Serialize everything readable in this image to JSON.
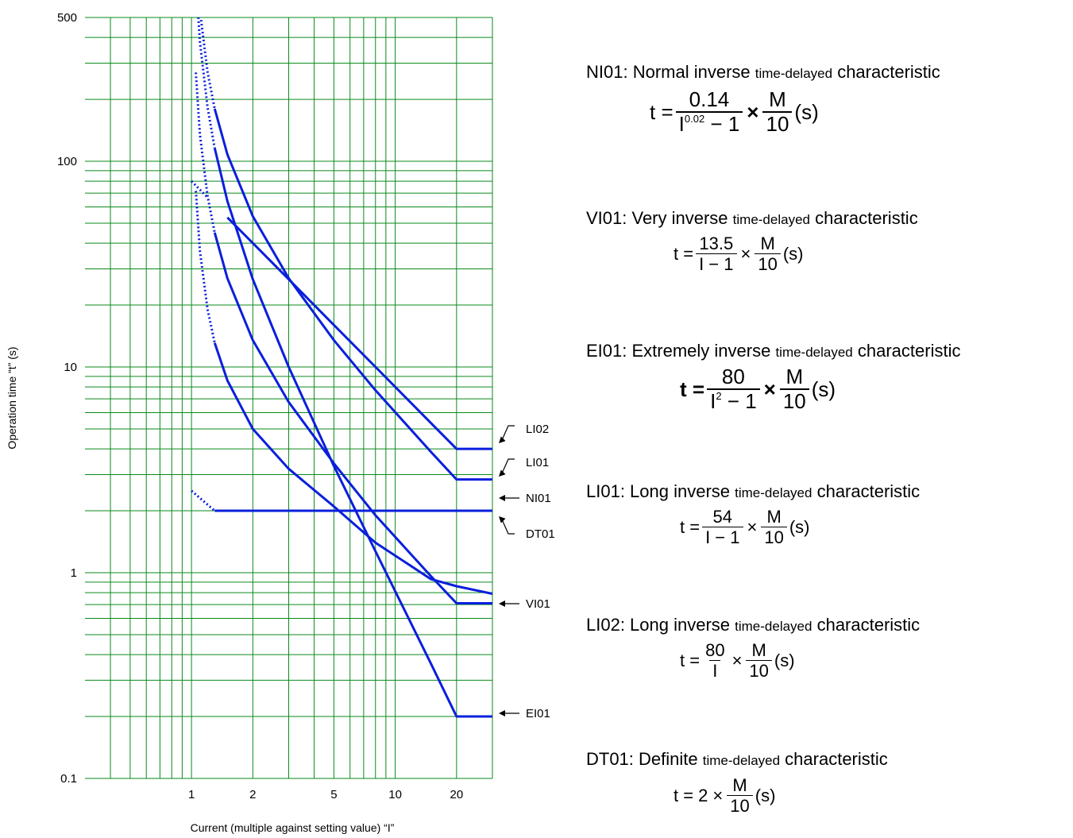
{
  "chart_data": {
    "type": "line",
    "x_scale": "log",
    "y_scale": "log",
    "xlabel": "Current (multiple against setting value) “I”",
    "ylabel": "Operation time “t” (s)",
    "x_ticks": [
      1,
      2,
      5,
      10,
      20
    ],
    "x_tick_labels": [
      "1",
      "2",
      "5",
      "10",
      "20"
    ],
    "y_ticks": [
      0.1,
      1,
      10,
      100,
      500
    ],
    "y_tick_labels": [
      "0.1",
      "1",
      "10",
      "100",
      "500"
    ],
    "xlim": [
      0.3,
      30
    ],
    "ylim": [
      0.1,
      500
    ],
    "grid": true,
    "line_color": "#0a1fdc",
    "grid_color": "#0a8a1a",
    "series": [
      {
        "name": "NI01",
        "x": [
          1.05,
          1.1,
          1.2,
          1.3,
          1.5,
          2,
          3,
          5,
          8,
          15,
          20,
          30
        ],
        "y": [
          71.7,
          36.6,
          19.0,
          13.1,
          8.6,
          5.0,
          3.2,
          2.1,
          1.4,
          0.93,
          0.86,
          0.79
        ]
      },
      {
        "name": "VI01",
        "x": [
          1.05,
          1.1,
          1.2,
          1.3,
          1.5,
          2,
          3,
          5,
          8,
          15,
          20,
          30
        ],
        "y": [
          270,
          135,
          67.5,
          45,
          27,
          13.5,
          6.75,
          3.4,
          1.9,
          0.96,
          0.71,
          0.71
        ]
      },
      {
        "name": "EI01",
        "x": [
          1.05,
          1.1,
          1.2,
          1.3,
          1.5,
          2,
          3,
          5,
          8,
          15,
          20,
          30
        ],
        "y": [
          780,
          381,
          182,
          116,
          64,
          26.7,
          10,
          3.3,
          1.27,
          0.36,
          0.2,
          0.2
        ]
      },
      {
        "name": "LI01",
        "x": [
          1.05,
          1.1,
          1.2,
          1.3,
          1.5,
          2,
          3,
          5,
          8,
          15,
          20,
          30
        ],
        "y": [
          1080,
          540,
          270,
          180,
          108,
          54,
          27,
          13.5,
          7.7,
          3.86,
          2.84,
          2.84
        ]
      },
      {
        "name": "LI02",
        "x": [
          1.0,
          1.2,
          1.5,
          2,
          3,
          5,
          8,
          15,
          20,
          30
        ],
        "y": [
          80,
          66.7,
          53.3,
          40,
          26.7,
          16,
          10,
          5.33,
          4.0,
          4.0
        ]
      },
      {
        "name": "DT01",
        "x": [
          1.0,
          1.3,
          30
        ],
        "y": [
          2.5,
          2.0,
          2.0
        ]
      }
    ],
    "annotations": [
      "LI02",
      "LI01",
      "NI01",
      "DT01",
      "VI01",
      "EI01"
    ]
  },
  "legend": {
    "ni01": {
      "head_a": "NI01: Normal inverse ",
      "head_b": "time-delayed",
      "head_c": " characteristic",
      "t": "t =",
      "num": "0.14",
      "den_base": "I",
      "den_exp": "0.02",
      "den_rest": "− 1",
      "times": "×",
      "m": "M",
      "ten": "10",
      "unit": "(s)"
    },
    "vi01": {
      "head_a": "VI01: Very inverse ",
      "head_b": "time-delayed",
      "head_c": " characteristic",
      "t": "t =",
      "num": "13.5",
      "den": "I − 1",
      "times": "×",
      "m": "M",
      "ten": "10",
      "unit": "(s)"
    },
    "ei01": {
      "head_a": "EI01: Extremely inverse ",
      "head_b": "time-delayed",
      "head_c": " characteristic",
      "t": "t =",
      "num": "80",
      "den_base": "I",
      "den_exp": "2",
      "den_rest": "− 1",
      "times": "×",
      "m": "M",
      "ten": "10",
      "unit": "(s)"
    },
    "li01": {
      "head_a": "LI01: Long inverse ",
      "head_b": "time-delayed",
      "head_c": " characteristic",
      "t": "t =",
      "num": "54",
      "den": "I − 1",
      "times": "×",
      "m": "M",
      "ten": "10",
      "unit": "(s)"
    },
    "li02": {
      "head_a": "LI02: Long inverse ",
      "head_b": "time-delayed",
      "head_c": " characteristic",
      "t": "t =",
      "num": "80",
      "den": "I",
      "times": "×",
      "m": "M",
      "ten": "10",
      "unit": "(s)"
    },
    "dt01": {
      "head_a": "DT01: Definite ",
      "head_b": "time-delayed",
      "head_c": " characteristic",
      "t": "t = 2",
      "times": "×",
      "m": "M",
      "ten": "10",
      "unit": "(s)"
    }
  }
}
